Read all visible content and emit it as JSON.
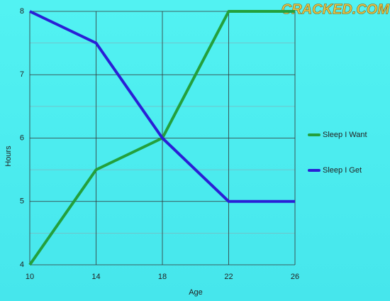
{
  "chart_data": {
    "type": "line",
    "watermark": "CRACKED.COM",
    "x_label": "Age",
    "y_label": "Hours",
    "x": [
      10,
      14,
      18,
      22,
      26
    ],
    "series": [
      {
        "name": "Sleep I Want",
        "color": "#23a03c",
        "values": [
          4,
          5.5,
          6,
          8,
          8
        ]
      },
      {
        "name": "Sleep I Get",
        "color": "#2a1fd6",
        "values": [
          8,
          7.5,
          6,
          5,
          5
        ]
      }
    ],
    "xlim": [
      10,
      26
    ],
    "xticks": [
      10,
      14,
      18,
      22,
      26
    ],
    "ylim": [
      4,
      8
    ],
    "yticks": [
      4,
      5,
      6,
      7,
      8
    ],
    "minor_yticks": [
      4.5,
      5.5,
      6.5,
      7.5
    ],
    "grid": true,
    "legend": "right"
  }
}
